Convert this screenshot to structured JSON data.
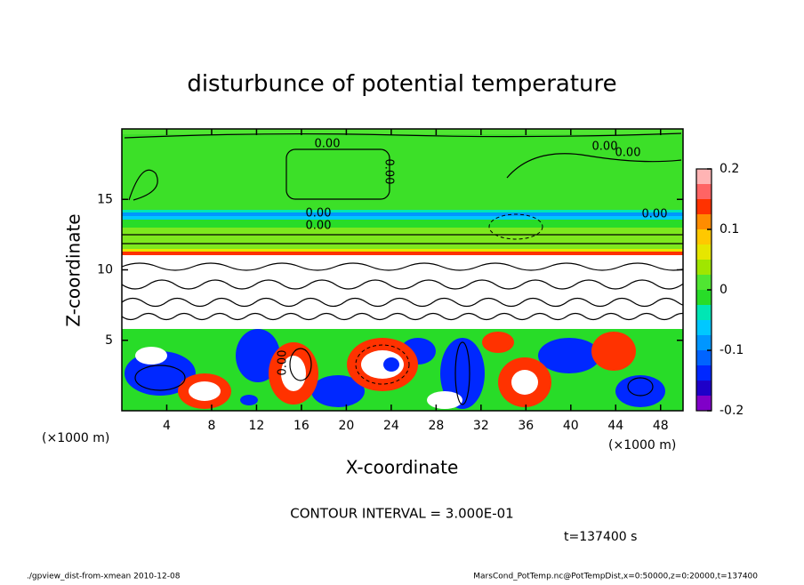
{
  "chart_data": {
    "type": "contour",
    "title": "disturbunce of potential temperature",
    "x_label": "X-coordinate",
    "y_label": "Z-coordinate",
    "x_unit": "(×1000 m)",
    "y_unit": "(×1000 m)",
    "xlim": [
      0,
      50
    ],
    "ylim": [
      0,
      20
    ],
    "xticks": [
      4,
      8,
      12,
      16,
      20,
      24,
      28,
      32,
      36,
      40,
      44,
      48
    ],
    "yticks": [
      5,
      10,
      15
    ],
    "colorbar": {
      "levels": [
        -0.2,
        -0.175,
        -0.15,
        -0.125,
        -0.1,
        -0.075,
        -0.05,
        -0.025,
        0,
        0.025,
        0.05,
        0.075,
        0.1,
        0.125,
        0.15,
        0.175,
        0.2
      ],
      "colors": [
        "#8000c8",
        "#1e00c8",
        "#0028ff",
        "#0064ff",
        "#0096ff",
        "#00c8ff",
        "#00e6b4",
        "#28dc28",
        "#50e632",
        "#a0e600",
        "#e6e600",
        "#ffc800",
        "#ff8c00",
        "#ff3200",
        "#ff6464",
        "#ffb4b4"
      ],
      "ticks": [
        -0.2,
        -0.1,
        0,
        0.1,
        0.2
      ]
    },
    "contour_labels": [
      "0.00",
      "0.00",
      "0.00",
      "0.00",
      "0.00",
      "0.00",
      "0.00",
      "0.00"
    ],
    "contour_interval_label": "CONTOUR INTERVAL = 3.000E-01",
    "time_label": "t=137400 s",
    "footer_left": "./gpview_dist-from-xmean  2010-12-08",
    "footer_right": "MarsCond_PotTemp.nc@PotTempDist,x=0:50000,z=0:20000,t=137400"
  }
}
